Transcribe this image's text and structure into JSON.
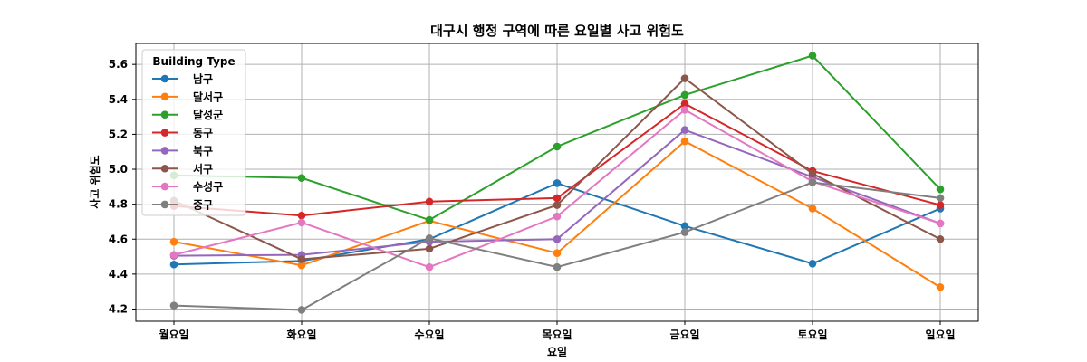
{
  "chart_data": {
    "type": "line",
    "title": "대구시 행정 구역에 따른 요일별 사고 위험도",
    "xlabel": "요일",
    "ylabel": "사고 위험도",
    "categories": [
      "월요일",
      "화요일",
      "수요일",
      "목요일",
      "금요일",
      "토요일",
      "일요일"
    ],
    "ylim": [
      4.13,
      5.72
    ],
    "yticks": [
      4.2,
      4.4,
      4.6,
      4.8,
      5.0,
      5.2,
      5.4,
      5.6
    ],
    "ytick_labels": [
      "4.2",
      "4.4",
      "4.6",
      "4.8",
      "5.0",
      "5.2",
      "5.4",
      "5.6"
    ],
    "grid": true,
    "legend_title": "Building Type",
    "legend_position": "upper-left",
    "series": [
      {
        "name": "남구",
        "color": "#1f77b4",
        "values": [
          4.455,
          4.475,
          4.6,
          4.92,
          4.675,
          4.46,
          4.775
        ]
      },
      {
        "name": "달서구",
        "color": "#ff7f0e",
        "values": [
          4.585,
          4.45,
          4.705,
          4.52,
          5.16,
          4.775,
          4.325
        ]
      },
      {
        "name": "달성군",
        "color": "#2ca02c",
        "values": [
          4.965,
          4.95,
          4.71,
          5.13,
          5.425,
          5.65,
          4.885
        ]
      },
      {
        "name": "동구",
        "color": "#d62728",
        "values": [
          4.79,
          4.735,
          4.815,
          4.835,
          5.375,
          4.99,
          4.795
        ]
      },
      {
        "name": "북구",
        "color": "#9467bd",
        "values": [
          4.505,
          4.51,
          4.585,
          4.6,
          5.225,
          4.955,
          4.69
        ]
      },
      {
        "name": "서구",
        "color": "#8c564b",
        "values": [
          4.82,
          4.485,
          4.545,
          4.795,
          5.52,
          4.975,
          4.6
        ]
      },
      {
        "name": "수성구",
        "color": "#e377c2",
        "values": [
          4.51,
          4.695,
          4.44,
          4.73,
          5.34,
          4.93,
          4.69
        ]
      },
      {
        "name": "중구",
        "color": "#7f7f7f",
        "values": [
          4.22,
          4.195,
          4.605,
          4.44,
          4.64,
          4.925,
          4.835
        ]
      }
    ]
  }
}
